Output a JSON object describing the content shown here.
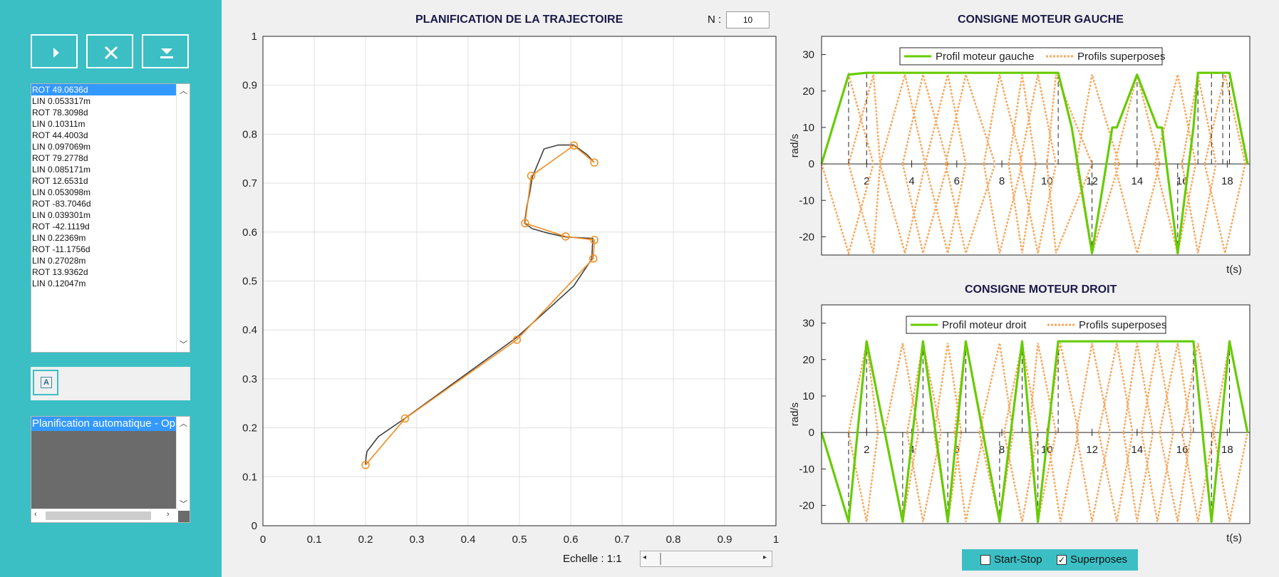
{
  "toolbar": {
    "play_icon": "play-icon",
    "clear_icon": "close-icon",
    "download_icon": "download-icon"
  },
  "commands": [
    "ROT 49.0636d",
    "LIN 0.053317m",
    "ROT 78.3098d",
    "LIN 0.10311m",
    "ROT 44.4003d",
    "LIN 0.097069m",
    "ROT 79.2778d",
    "LIN 0.085171m",
    "ROT 12.6531d",
    "LIN 0.053098m",
    "ROT -83.7046d",
    "LIN 0.039301m",
    "ROT -42.1119d",
    "LIN 0.22369m",
    "ROT -11.1756d",
    "LIN 0.27028m",
    "ROT 13.9362d",
    "LIN 0.12047m"
  ],
  "auto_button_label": "A",
  "log_line": "Planification automatique - Op",
  "trajectory": {
    "title": "PLANIFICATION DE LA TRAJECTOIRE",
    "n_label": "N :",
    "n_value": "10",
    "echelle_label": "Echelle : 1:1"
  },
  "left_motor": {
    "title": "CONSIGNE MOTEUR GAUCHE",
    "legend_main": "Profil moteur gauche",
    "legend_over": "Profils superposes",
    "ylabel": "rad/s",
    "xlabel": "t(s)"
  },
  "right_motor": {
    "title": "CONSIGNE MOTEUR DROIT",
    "legend_main": "Profil moteur droit",
    "legend_over": "Profils superposes",
    "ylabel": "rad/s",
    "xlabel": "t(s)"
  },
  "controls": {
    "start_stop": "Start-Stop",
    "superposes": "Superposes",
    "superposes_checked": true,
    "start_stop_checked": false
  },
  "colors": {
    "accent": "#3bbfc4",
    "orange": "#f28c1e",
    "green": "#66cc00",
    "dark": "#404040"
  },
  "chart_data": [
    {
      "type": "line",
      "title": "PLANIFICATION DE LA TRAJECTOIRE",
      "xlim": [
        0,
        1
      ],
      "ylim": [
        0,
        1
      ],
      "xticks": [
        0,
        0.1,
        0.2,
        0.3,
        0.4,
        0.5,
        0.6,
        0.7,
        0.8,
        0.9,
        1
      ],
      "yticks": [
        0,
        0.1,
        0.2,
        0.3,
        0.4,
        0.5,
        0.6,
        0.7,
        0.8,
        0.9,
        1
      ],
      "grid": true,
      "series": [
        {
          "style": "line",
          "color": "#404040",
          "x": [
            0.2,
            0.201,
            0.203,
            0.225,
            0.275,
            0.495,
            0.606,
            0.641,
            0.643,
            0.59,
            0.555,
            0.525,
            0.51,
            0.514,
            0.52,
            0.525,
            0.548,
            0.576,
            0.606,
            0.632,
            0.645
          ],
          "y": [
            0.125,
            0.14,
            0.152,
            0.182,
            0.218,
            0.385,
            0.49,
            0.545,
            0.587,
            0.59,
            0.598,
            0.607,
            0.618,
            0.65,
            0.68,
            0.712,
            0.77,
            0.778,
            0.778,
            0.758,
            0.743
          ]
        },
        {
          "style": "line-markers",
          "color": "#f28c1e",
          "x": [
            0.2,
            0.277,
            0.495,
            0.644,
            0.646,
            0.59,
            0.511,
            0.523,
            0.606,
            0.646
          ],
          "y": [
            0.124,
            0.219,
            0.38,
            0.546,
            0.584,
            0.591,
            0.618,
            0.715,
            0.777,
            0.742
          ]
        }
      ]
    },
    {
      "type": "line",
      "title": "CONSIGNE MOTEUR GAUCHE",
      "xlabel": "t(s)",
      "ylabel": "rad/s",
      "xlim": [
        0,
        19
      ],
      "ylim": [
        -25,
        35
      ],
      "xticks": [
        2,
        4,
        6,
        8,
        10,
        12,
        14,
        16,
        18
      ],
      "yticks": [
        -20,
        -10,
        0,
        10,
        20,
        30
      ],
      "legend": "top",
      "series": [
        {
          "name": "Profil moteur gauche",
          "color": "#66cc00",
          "x": [
            0,
            1.2,
            2,
            10.5,
            11.1,
            12,
            12.9,
            13.1,
            14,
            14.9,
            15.1,
            15.8,
            16.5,
            16.7,
            17.3,
            17.8,
            18.1,
            18.9
          ],
          "y": [
            0,
            24.5,
            25,
            25,
            10,
            -24.5,
            10,
            10,
            24.5,
            10,
            10,
            -24.5,
            10,
            25,
            25,
            25,
            25,
            0
          ]
        },
        {
          "name": "Profils superposes",
          "color": "#f8a95f",
          "triangles": [
            [
              0,
              1.2,
              2.3
            ],
            [
              1.2,
              2.3,
              2.6
            ],
            [
              2.6,
              3.7,
              4.6
            ],
            [
              3.6,
              4.5,
              5.6
            ],
            [
              4.6,
              5.6,
              6.4
            ],
            [
              5.5,
              6.4,
              7.7
            ],
            [
              7.2,
              7.9,
              8.9
            ],
            [
              8.3,
              8.9,
              9.5
            ],
            [
              8.8,
              9.6,
              10.4
            ],
            [
              10,
              10.4,
              12
            ],
            [
              11.3,
              12,
              13.2
            ],
            [
              13,
              14,
              15
            ],
            [
              14.8,
              15.8,
              16.6
            ],
            [
              16,
              16.7,
              17.5
            ],
            [
              17,
              17.9,
              18.8
            ]
          ]
        }
      ]
    },
    {
      "type": "line",
      "title": "CONSIGNE MOTEUR DROIT",
      "xlabel": "t(s)",
      "ylabel": "rad/s",
      "xlim": [
        0,
        19
      ],
      "ylim": [
        -25,
        35
      ],
      "xticks": [
        2,
        4,
        6,
        8,
        10,
        12,
        14,
        16,
        18
      ],
      "xticklabels": [
        "2",
        "4",
        "6",
        "8",
        "10",
        "12",
        "14",
        "16",
        "18"
      ],
      "yticks": [
        -20,
        -10,
        0,
        10,
        20,
        30
      ],
      "legend": "top",
      "series": [
        {
          "name": "Profil moteur droit",
          "color": "#66cc00",
          "x": [
            0,
            1.2,
            2,
            3.6,
            4.5,
            5.6,
            6.4,
            7.9,
            8.9,
            9.6,
            10.5,
            16.5,
            17.3,
            18.1,
            18.9
          ],
          "y": [
            0,
            -24.5,
            25,
            -24.5,
            25,
            -24.5,
            25,
            -24.5,
            25,
            -24.5,
            25,
            25,
            -24.5,
            25,
            0
          ]
        },
        {
          "name": "Profils superposes",
          "color": "#f8a95f",
          "triangles": [
            [
              1.2,
              2,
              2.5
            ],
            [
              2.8,
              3.6,
              4.3
            ],
            [
              3.8,
              4.5,
              5.3
            ],
            [
              5,
              5.6,
              6.2
            ],
            [
              5.9,
              6.4,
              7.2
            ],
            [
              7,
              7.9,
              8.5
            ],
            [
              8.1,
              8.9,
              9.6
            ],
            [
              9.2,
              9.6,
              10.4
            ],
            [
              10,
              10.6,
              11.4
            ],
            [
              11.3,
              12,
              12.8
            ],
            [
              12.3,
              13.1,
              13.8
            ],
            [
              13.4,
              14,
              14.7
            ],
            [
              14.2,
              14.9,
              15.6
            ],
            [
              15,
              15.8,
              16.4
            ],
            [
              16,
              16.7,
              17.4
            ],
            [
              17.4,
              18.1,
              18.9
            ]
          ]
        }
      ]
    }
  ]
}
